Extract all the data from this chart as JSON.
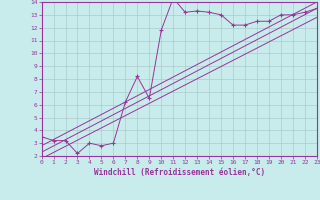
{
  "xlabel": "Windchill (Refroidissement éolien,°C)",
  "bg_color": "#c8ecec",
  "line_color": "#993399",
  "grid_color": "#aacccc",
  "xlim": [
    0,
    23
  ],
  "ylim": [
    2,
    14
  ],
  "xticks": [
    0,
    1,
    2,
    3,
    4,
    5,
    6,
    7,
    8,
    9,
    10,
    11,
    12,
    13,
    14,
    15,
    16,
    17,
    18,
    19,
    20,
    21,
    22,
    23
  ],
  "yticks": [
    2,
    3,
    4,
    5,
    6,
    7,
    8,
    9,
    10,
    11,
    12,
    13,
    14
  ],
  "data_x": [
    0,
    1,
    2,
    3,
    4,
    5,
    6,
    7,
    8,
    9,
    10,
    11,
    12,
    13,
    14,
    15,
    16,
    17,
    18,
    19,
    20,
    21,
    22,
    23
  ],
  "data_y": [
    3.5,
    3.2,
    3.2,
    2.2,
    3.0,
    2.8,
    3.0,
    6.2,
    8.2,
    6.5,
    11.8,
    14.3,
    13.2,
    13.3,
    13.2,
    13.0,
    12.2,
    12.2,
    12.5,
    12.5,
    13.0,
    13.0,
    13.2,
    13.5
  ],
  "line1_x": [
    0,
    23
  ],
  "line1_y": [
    2.3,
    13.5
  ],
  "line2_x": [
    0,
    23
  ],
  "line2_y": [
    2.8,
    14.0
  ],
  "line3_x": [
    0,
    23
  ],
  "line3_y": [
    1.8,
    12.8
  ]
}
